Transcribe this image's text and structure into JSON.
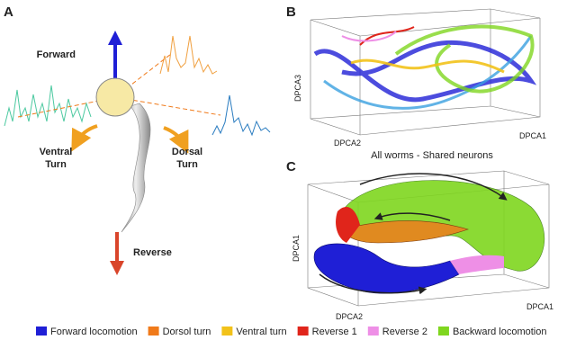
{
  "panel_a": {
    "label": "A",
    "forward": "Forward",
    "ventral": [
      "Ventral",
      "Turn"
    ],
    "dorsal": [
      "Dorsal",
      "Turn"
    ],
    "reverse": "Reverse"
  },
  "panel_b": {
    "label": "B",
    "z_axis": "DPCA3",
    "x_axis": "DPCA2",
    "y_axis": "DPCA1",
    "caption": "All worms - Shared neurons"
  },
  "panel_c": {
    "label": "C",
    "z_axis": "DPCA1",
    "x_axis": "DPCA2",
    "y_axis": "DPCA1"
  },
  "legend": [
    {
      "name": "Forward locomotion",
      "color": "#1f1fd6"
    },
    {
      "name": "Dorsol turn",
      "color": "#f07a1a"
    },
    {
      "name": "Ventral turn",
      "color": "#f2c21a"
    },
    {
      "name": "Reverse 1",
      "color": "#e0251b"
    },
    {
      "name": "Reverse 2",
      "color": "#ee8fe6"
    },
    {
      "name": "Backward locomotion",
      "color": "#7fd61f"
    }
  ]
}
